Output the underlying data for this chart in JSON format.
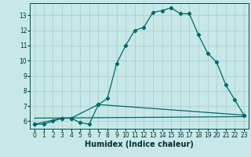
{
  "title": "",
  "xlabel": "Humidex (Indice chaleur)",
  "background_color": "#c8e8e8",
  "grid_color": "#a8cece",
  "line_color": "#006868",
  "xlim": [
    -0.5,
    23.5
  ],
  "ylim": [
    5.5,
    13.8
  ],
  "xticks": [
    0,
    1,
    2,
    3,
    4,
    5,
    6,
    7,
    8,
    9,
    10,
    11,
    12,
    13,
    14,
    15,
    16,
    17,
    18,
    19,
    20,
    21,
    22,
    23
  ],
  "yticks": [
    6,
    7,
    8,
    9,
    10,
    11,
    12,
    13
  ],
  "line1_x": [
    0,
    1,
    2,
    3,
    4,
    5,
    6,
    7,
    8,
    9,
    10,
    11,
    12,
    13,
    14,
    15,
    16,
    17,
    18,
    19,
    20,
    21,
    22,
    23
  ],
  "line1_y": [
    5.8,
    5.8,
    6.0,
    6.2,
    6.2,
    5.9,
    5.8,
    7.1,
    7.5,
    9.8,
    11.0,
    12.0,
    12.2,
    13.2,
    13.3,
    13.5,
    13.1,
    13.1,
    11.7,
    10.5,
    9.9,
    8.4,
    7.4,
    6.4
  ],
  "line2_x": [
    0,
    3,
    4,
    7,
    23
  ],
  "line2_y": [
    5.8,
    6.2,
    6.2,
    7.1,
    6.4
  ],
  "line3_x": [
    0,
    23
  ],
  "line3_y": [
    6.2,
    6.3
  ],
  "tick_fontsize": 5.5,
  "xlabel_fontsize": 7,
  "marker_size": 2.2,
  "linewidth": 0.9
}
